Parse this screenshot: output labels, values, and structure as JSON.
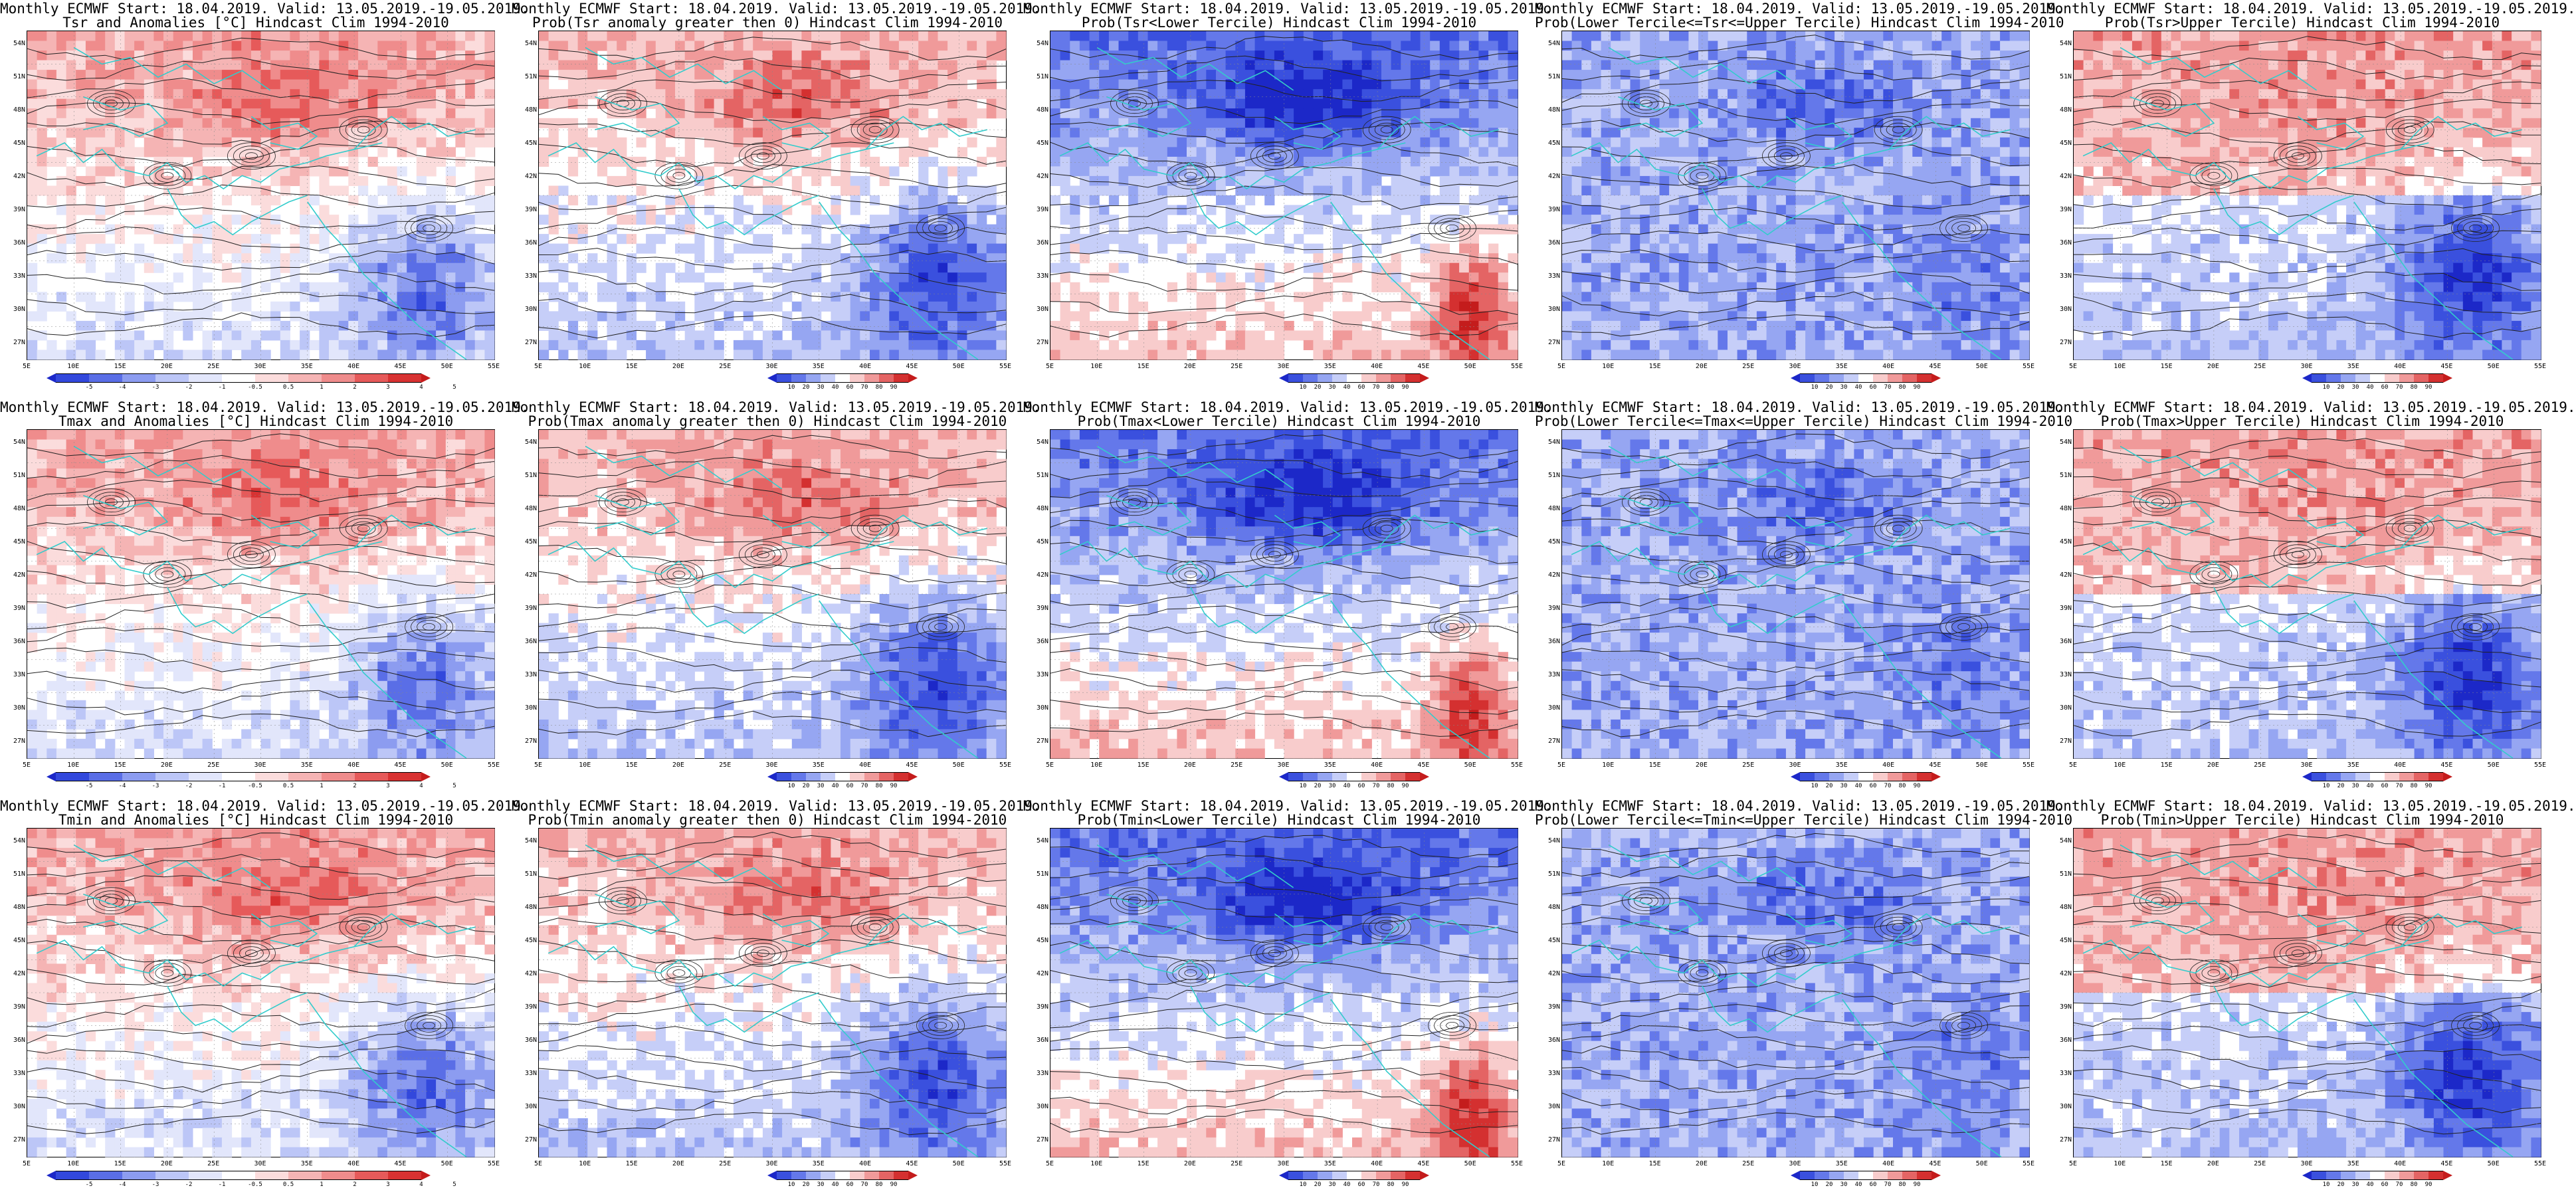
{
  "colors": {
    "anom": [
      "#1c28c8",
      "#3248dc",
      "#5a6ee6",
      "#8c9cf0",
      "#bcc6f7",
      "#e2e6fb",
      "#ffffff",
      "#fbdcdc",
      "#f5b4b4",
      "#ef8c8c",
      "#e65a5a",
      "#d83232",
      "#c41c1c"
    ],
    "prob": [
      "#1c28c8",
      "#3a50de",
      "#6478ea",
      "#96a6f2",
      "#c6cef8",
      "#ffffff",
      "#f8cccc",
      "#f09a9a",
      "#e46464",
      "#d43030",
      "#c41c1c"
    ],
    "coast": "#33cccc",
    "contour": "#222222"
  },
  "colorbars": {
    "anom_labels": [
      "-5",
      "-4",
      "-3",
      "-2",
      "-1",
      "-0.5",
      "0.5",
      "1",
      "2",
      "3",
      "4",
      "5"
    ],
    "prob_labels": [
      "10",
      "20",
      "30",
      "40",
      "60",
      "70",
      "80",
      "90"
    ]
  },
  "axes": {
    "lat_labels": [
      "54N",
      "51N",
      "48N",
      "45N",
      "42N",
      "39N",
      "36N",
      "33N",
      "30N",
      "27N"
    ],
    "lon_labels": [
      "5E",
      "10E",
      "15E",
      "20E",
      "25E",
      "30E",
      "35E",
      "40E",
      "45E",
      "50E",
      "55E"
    ]
  },
  "panels": [
    {
      "line1": "Monthly ECMWF Start: 18.04.2019. Valid: 13.05.2019.-19.05.2019.",
      "line2": "Tsr and Anomalies [°C] Hindcast Clim 1994-2010",
      "cbar": "anom",
      "pattern": "anom"
    },
    {
      "line1": "Monthly ECMWF Start: 18.04.2019. Valid: 13.05.2019.-19.05.2019.",
      "line2": "Prob(Tsr anomaly greater then 0) Hindcast Clim 1994-2010",
      "cbar": "prob",
      "pattern": "probpos"
    },
    {
      "line1": "Monthly ECMWF Start: 18.04.2019. Valid: 13.05.2019.-19.05.2019.",
      "line2": "Prob(Tsr<Lower Tercile) Hindcast Clim 1994-2010",
      "cbar": "prob",
      "pattern": "lower"
    },
    {
      "line1": "Monthly ECMWF Start: 18.04.2019. Valid: 13.05.2019.-19.05.2019.",
      "line2": "Prob(Lower Tercile<=Tsr<=Upper Tercile) Hindcast Clim 1994-2010",
      "cbar": "prob",
      "pattern": "middle"
    },
    {
      "line1": "Monthly ECMWF Start: 18.04.2019. Valid: 13.05.2019.-19.05.2019.",
      "line2": "Prob(Tsr>Upper Tercile) Hindcast Clim 1994-2010",
      "cbar": "prob",
      "pattern": "upper"
    },
    {
      "line1": "Monthly ECMWF Start: 18.04.2019. Valid: 13.05.2019.-19.05.2019.",
      "line2": "Tmax and Anomalies [°C] Hindcast Clim 1994-2010",
      "cbar": "anom",
      "pattern": "anom"
    },
    {
      "line1": "Monthly ECMWF Start: 18.04.2019. Valid: 13.05.2019.-19.05.2019.",
      "line2": "Prob(Tmax anomaly greater then 0) Hindcast Clim 1994-2010",
      "cbar": "prob",
      "pattern": "probpos"
    },
    {
      "line1": "Monthly ECMWF Start: 18.04.2019. Valid: 13.05.2019.-19.05.2019.",
      "line2": "Prob(Tmax<Lower Tercile) Hindcast Clim 1994-2010",
      "cbar": "prob",
      "pattern": "lower"
    },
    {
      "line1": "Monthly ECMWF Start: 18.04.2019. Valid: 13.05.2019.-19.05.2019.",
      "line2": "Prob(Lower Tercile<=Tmax<=Upper Tercile) Hindcast Clim 1994-2010",
      "cbar": "prob",
      "pattern": "middle"
    },
    {
      "line1": "Monthly ECMWF Start: 18.04.2019. Valid: 13.05.2019.-19.05.2019.",
      "line2": "Prob(Tmax>Upper Tercile) Hindcast Clim 1994-2010",
      "cbar": "prob",
      "pattern": "upper"
    },
    {
      "line1": "Monthly ECMWF Start: 18.04.2019. Valid: 13.05.2019.-19.05.2019.",
      "line2": "Tmin and Anomalies [°C] Hindcast Clim 1994-2010",
      "cbar": "anom",
      "pattern": "anom"
    },
    {
      "line1": "Monthly ECMWF Start: 18.04.2019. Valid: 13.05.2019.-19.05.2019.",
      "line2": "Prob(Tmin anomaly greater then 0) Hindcast Clim 1994-2010",
      "cbar": "prob",
      "pattern": "probpos"
    },
    {
      "line1": "Monthly ECMWF Start: 18.04.2019. Valid: 13.05.2019.-19.05.2019.",
      "line2": "Prob(Tmin<Lower Tercile) Hindcast Clim 1994-2010",
      "cbar": "prob",
      "pattern": "lower"
    },
    {
      "line1": "Monthly ECMWF Start: 18.04.2019. Valid: 13.05.2019.-19.05.2019.",
      "line2": "Prob(Lower Tercile<=Tmin<=Upper Tercile) Hindcast Clim 1994-2010",
      "cbar": "prob",
      "pattern": "middle"
    },
    {
      "line1": "Monthly ECMWF Start: 18.04.2019. Valid: 13.05.2019.-19.05.2019.",
      "line2": "Prob(Tmin>Upper Tercile) Hindcast Clim 1994-2010",
      "cbar": "prob",
      "pattern": "upper"
    }
  ]
}
